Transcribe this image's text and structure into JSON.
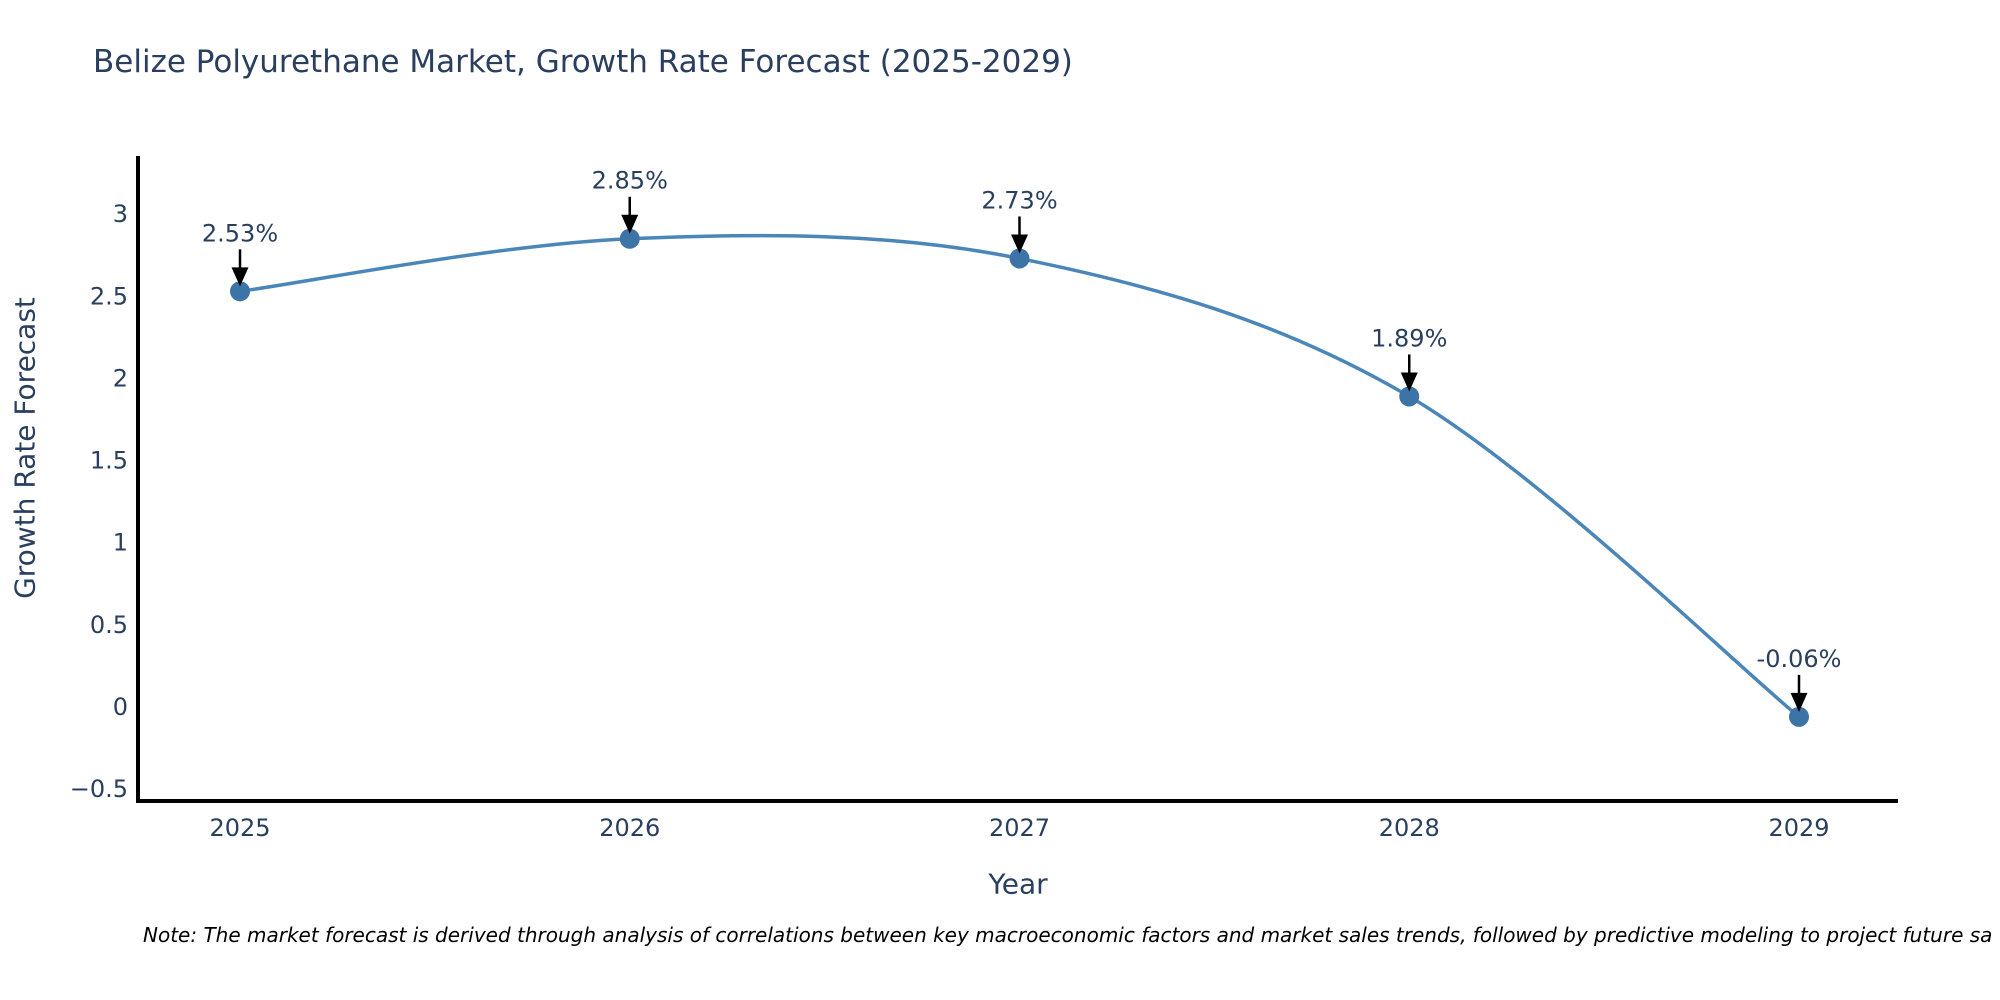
{
  "title": "Belize Polyurethane Market, Growth Rate Forecast (2025-2029)",
  "note": "Note: The market forecast is derived through analysis of correlations between key macroeconomic factors and market sales trends, followed by predictive modeling to project future sa",
  "chart_data": {
    "type": "line",
    "curve": "spline",
    "title": "Belize Polyurethane Market, Growth Rate Forecast (2025-2029)",
    "xlabel": "Year",
    "ylabel": "Growth Rate Forecast",
    "x": [
      2025,
      2026,
      2027,
      2028,
      2029
    ],
    "y": [
      2.53,
      2.85,
      2.73,
      1.89,
      -0.06
    ],
    "point_labels": [
      "2.53%",
      "2.85%",
      "2.73%",
      "1.89%",
      "-0.06%"
    ],
    "x_ticks": [
      "2025",
      "2026",
      "2027",
      "2028",
      "2029"
    ],
    "y_ticks": [
      "3",
      "2.5",
      "2",
      "1.5",
      "1",
      "0.5",
      "0",
      "−0.5"
    ],
    "y_tick_values": [
      3,
      2.5,
      2,
      1.5,
      1,
      0.5,
      0,
      -0.5
    ],
    "ylim": [
      -0.6,
      3.35
    ],
    "grid": false,
    "legend": false,
    "line_color": "#4a86b8",
    "marker_color": "#3d74a8",
    "arrow_color": "#000000",
    "axis_color": "#000000",
    "text_color": "#2a3f5f"
  }
}
